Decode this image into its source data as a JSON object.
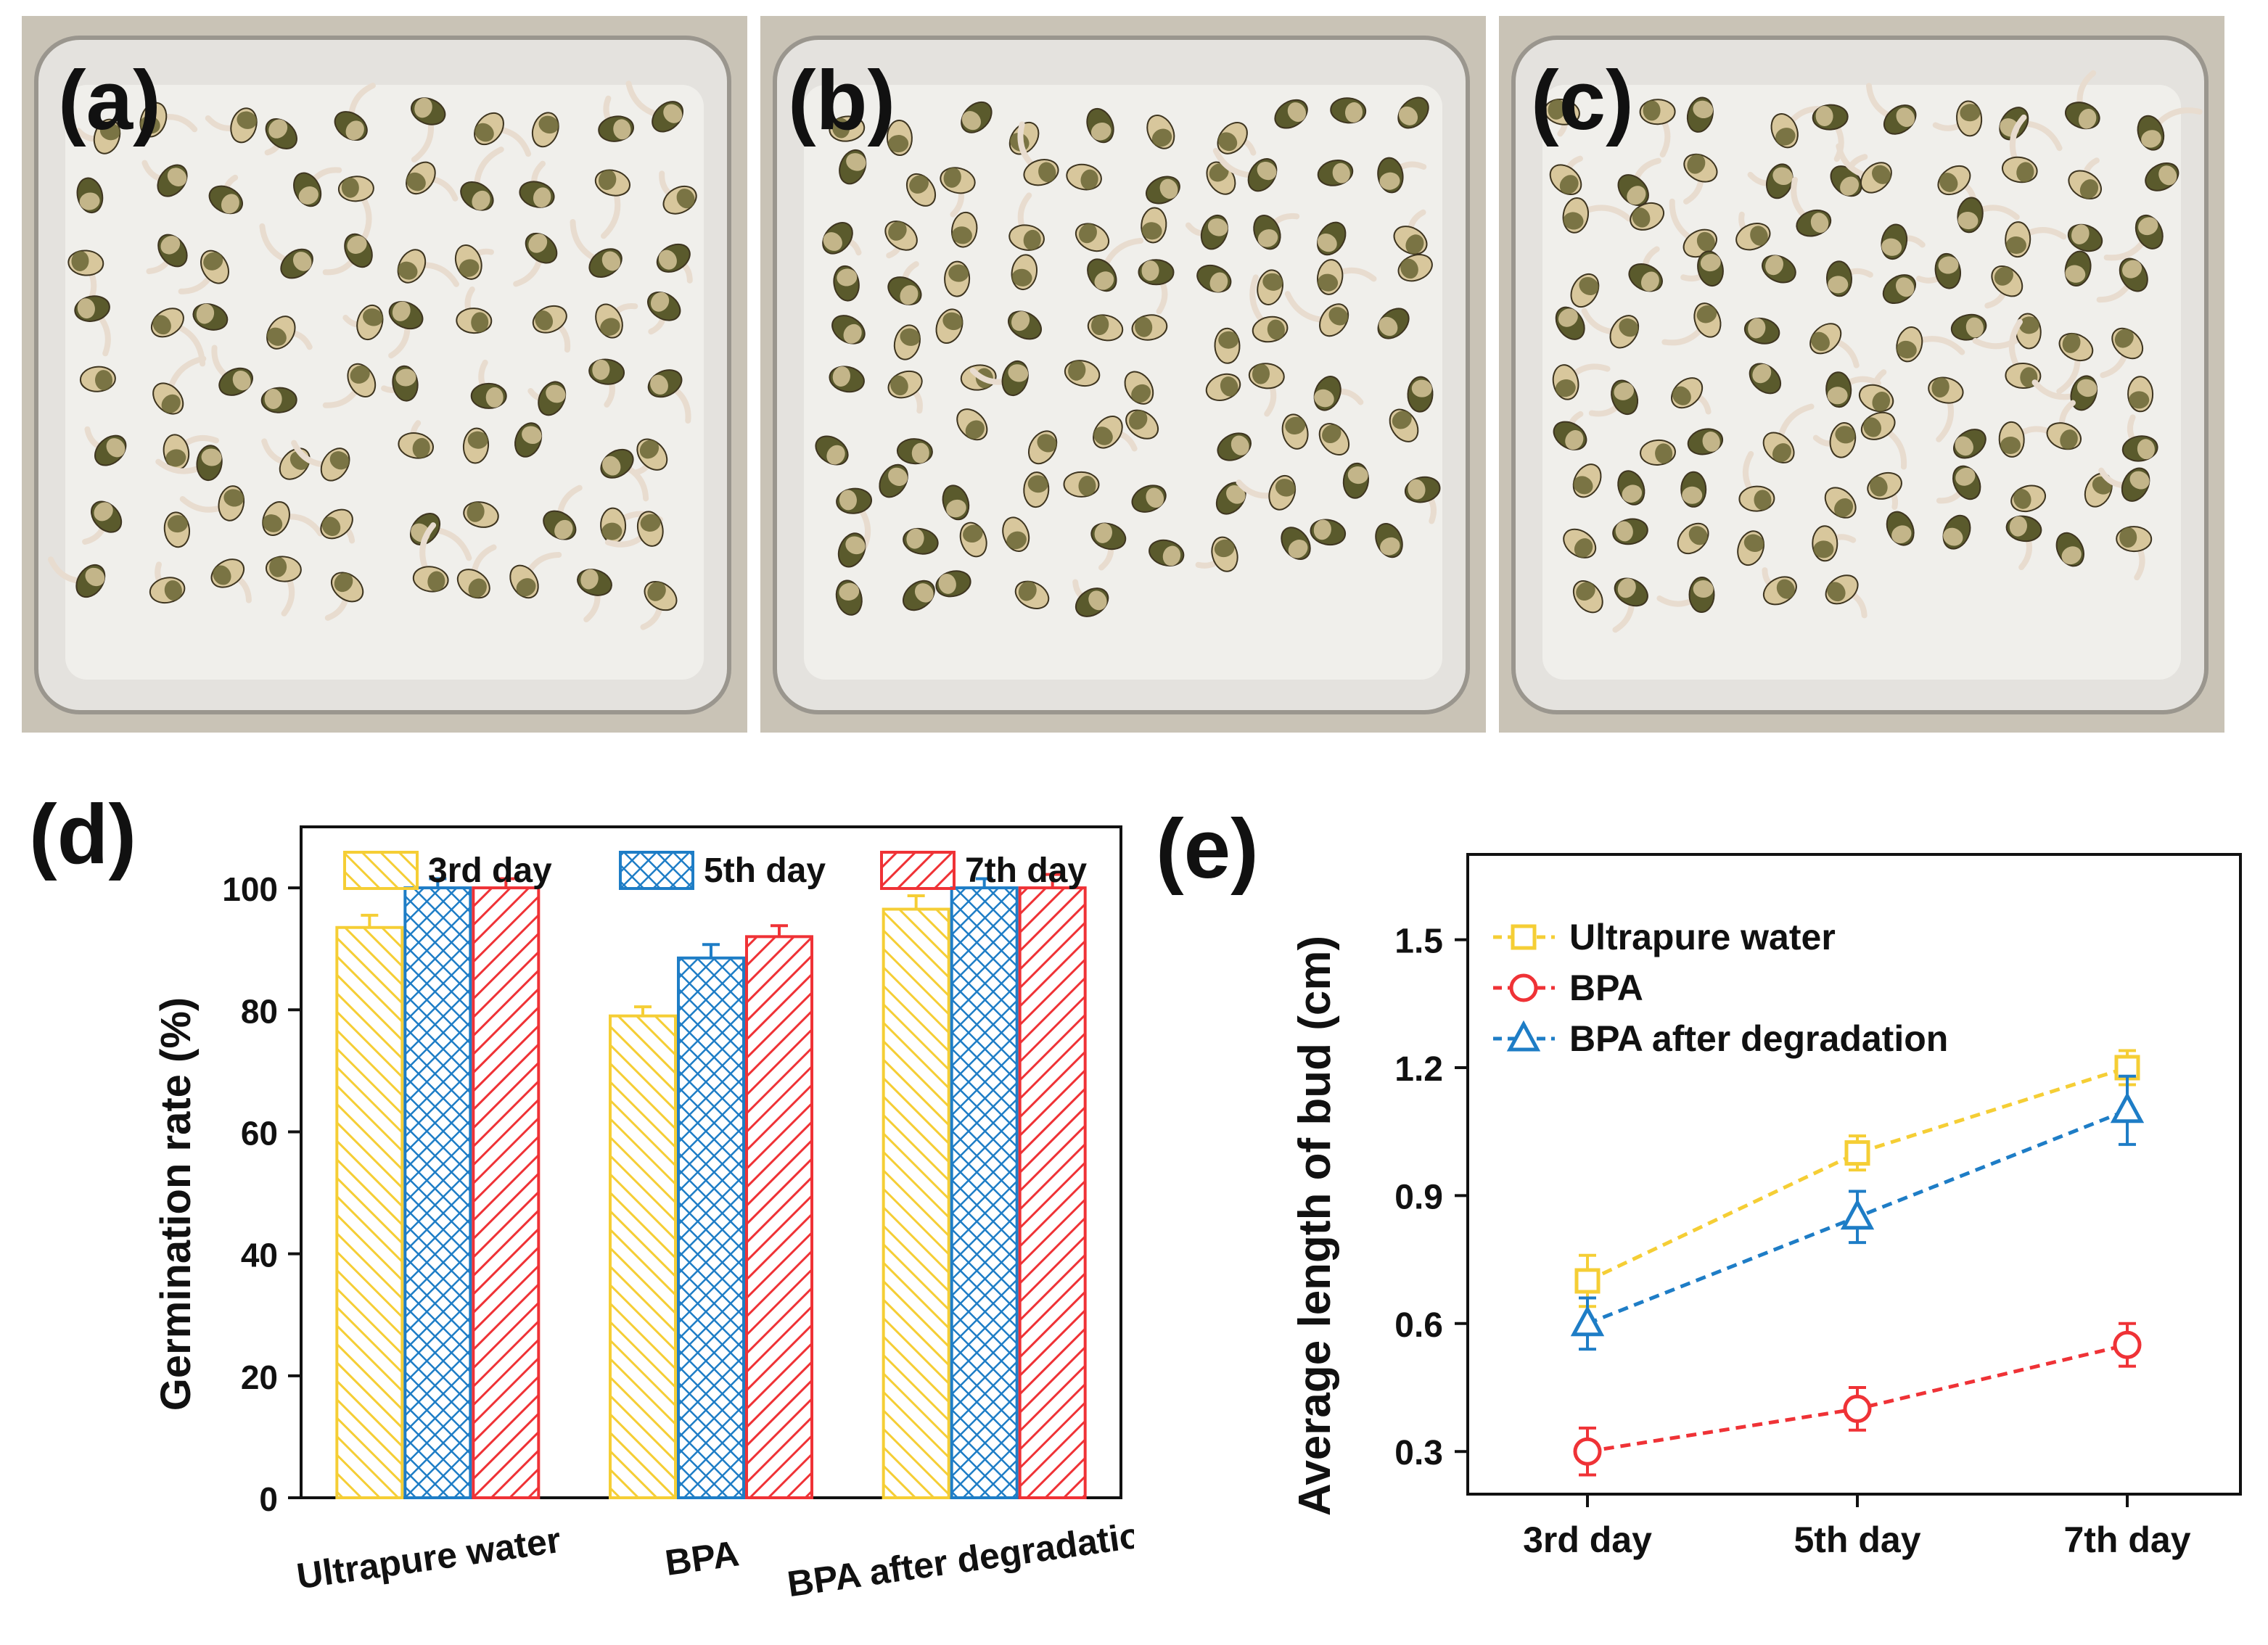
{
  "panels": {
    "a": "(a)",
    "b": "(b)",
    "c": "(c)",
    "d": "(d)",
    "e": "(e)"
  },
  "colors": {
    "yellow": "#F5CE35",
    "blue": "#1E7DC6",
    "red": "#EF3236",
    "towel": "#F0EFEB",
    "background": "#C9C3B6"
  },
  "photo_content": {
    "a": {
      "seed_count": 80,
      "sprout_fraction": 0.85
    },
    "b": {
      "seed_count": 95,
      "sprout_fraction": 0.25
    },
    "c": {
      "seed_count": 95,
      "sprout_fraction": 0.6
    }
  },
  "chart_data": [
    {
      "type": "bar",
      "panel": "d",
      "ylabel": "Germination rate (%)",
      "categories": [
        "Ultrapure water",
        "BPA",
        "BPA after degradation"
      ],
      "series": [
        {
          "name": "3rd day",
          "pattern": "diagonal",
          "color": "#F5CE35",
          "values": [
            93.5,
            79,
            96.5
          ],
          "errors": [
            2,
            1.5,
            2.2
          ]
        },
        {
          "name": "5th day",
          "pattern": "crosshatch",
          "color": "#1E7DC6",
          "values": [
            100,
            88.5,
            100
          ],
          "errors": [
            1.5,
            2.2,
            1.5
          ]
        },
        {
          "name": "7th day",
          "pattern": "backdiagonal",
          "color": "#EF3236",
          "values": [
            100,
            92,
            100
          ],
          "errors": [
            1.5,
            1.8,
            2.2
          ]
        }
      ],
      "ylim": [
        0,
        110
      ],
      "yticks": [
        0,
        20,
        40,
        60,
        80,
        100
      ],
      "ytick_labels": [
        "0",
        "20",
        "40",
        "60",
        "80",
        "100"
      ],
      "legend_position": "top"
    },
    {
      "type": "line",
      "panel": "e",
      "ylabel": "Average length of bud (cm)",
      "categories": [
        "3rd day",
        "5th day",
        "7th day"
      ],
      "series": [
        {
          "name": "Ultrapure water",
          "marker": "square",
          "color": "#F5CE35",
          "values": [
            0.7,
            1.0,
            1.2
          ],
          "errors": [
            0.06,
            0.04,
            0.04
          ]
        },
        {
          "name": "BPA",
          "marker": "circle",
          "color": "#EF3236",
          "values": [
            0.3,
            0.4,
            0.55
          ],
          "errors": [
            0.055,
            0.05,
            0.05
          ]
        },
        {
          "name": "BPA after degradation",
          "marker": "triangle",
          "color": "#1E7DC6",
          "values": [
            0.6,
            0.85,
            1.1
          ],
          "errors": [
            0.06,
            0.06,
            0.08
          ]
        }
      ],
      "ylim": [
        0.2,
        1.7
      ],
      "yticks": [
        0.3,
        0.6,
        0.9,
        1.2,
        1.5
      ],
      "ytick_labels": [
        "0.3",
        "0.6",
        "0.9",
        "1.2",
        "1.5"
      ],
      "legend_position": "top-left"
    }
  ]
}
